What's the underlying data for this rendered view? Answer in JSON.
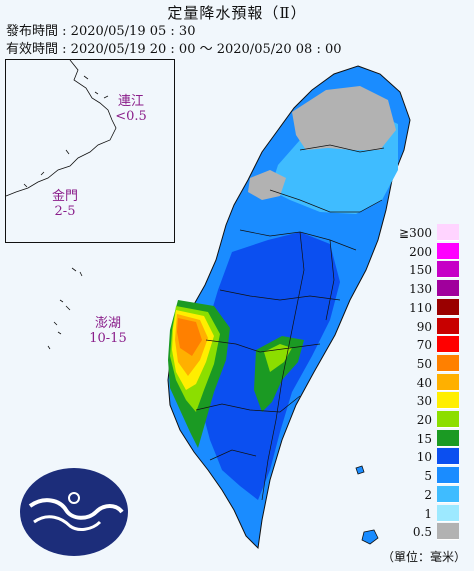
{
  "header": {
    "title": "定量降水預報（Ⅱ）",
    "issue_label": "發布時間",
    "issue_value": "2020/05/19 05 : 30",
    "valid_label": "有效時間",
    "valid_value": "2020/05/19 20 : 00 〜 2020/05/20 08 : 00"
  },
  "islands": {
    "matsu": {
      "name": "連江",
      "value": "<0.5"
    },
    "kinmen": {
      "name": "金門",
      "value": "2-5"
    },
    "penghu": {
      "name": "澎湖",
      "value": "10-15"
    }
  },
  "legend": {
    "items": [
      {
        "label": "≧300",
        "color": "#ffd4ff"
      },
      {
        "label": "200",
        "color": "#ff00ff"
      },
      {
        "label": "150",
        "color": "#c600c6"
      },
      {
        "label": "130",
        "color": "#a0009c"
      },
      {
        "label": "110",
        "color": "#9a0000"
      },
      {
        "label": "90",
        "color": "#c80000"
      },
      {
        "label": "70",
        "color": "#ff0000"
      },
      {
        "label": "50",
        "color": "#ff8000"
      },
      {
        "label": "40",
        "color": "#ffb000"
      },
      {
        "label": "30",
        "color": "#ffee00"
      },
      {
        "label": "20",
        "color": "#8cde00"
      },
      {
        "label": "15",
        "color": "#1b9a23"
      },
      {
        "label": "10",
        "color": "#0b4ff0"
      },
      {
        "label": "5",
        "color": "#1a8cff"
      },
      {
        "label": "2",
        "color": "#3fbcff"
      },
      {
        "label": "1",
        "color": "#9de9ff"
      },
      {
        "label": "0.5",
        "color": "#b2b2b2"
      }
    ],
    "unit": "（單位：毫米）"
  },
  "colors": {
    "background": "#f1f7fc",
    "label": "#8a1e8a",
    "logo": "#1c2d7a"
  },
  "icons": {
    "logo": "cwb-logo-icon"
  }
}
